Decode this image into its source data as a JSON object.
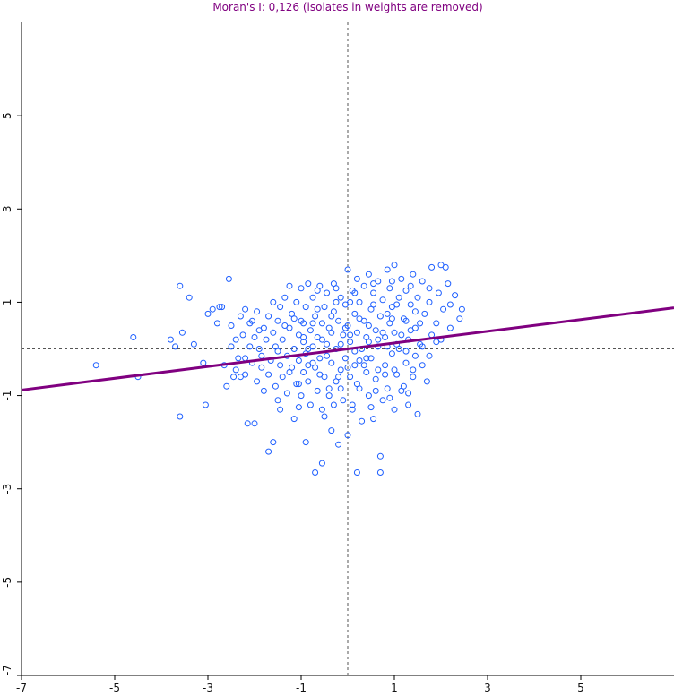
{
  "chart_data": {
    "type": "scatter",
    "title": "Moran's I: 0,126 (isolates in weights are removed)",
    "title_color": "#800080",
    "xlabel": "",
    "ylabel": "",
    "xlim": [
      -7,
      7
    ],
    "ylim": [
      -7,
      7
    ],
    "x_ticks": [
      "-7",
      "-5",
      "-3",
      "-1",
      "1",
      "3",
      "5"
    ],
    "y_ticks": [
      "-7",
      "-5",
      "-3",
      "-1",
      "1",
      "3",
      "5"
    ],
    "point_color": "#1e5fff",
    "line_color": "#800080",
    "regression": {
      "slope": 0.126,
      "intercept": 0.0
    },
    "reference_lines": {
      "x": 0,
      "y": 0
    },
    "grid": false,
    "points": [
      [
        -5.4,
        -0.35
      ],
      [
        -4.6,
        0.25
      ],
      [
        -4.5,
        -0.6
      ],
      [
        -3.8,
        0.2
      ],
      [
        -3.7,
        0.05
      ],
      [
        -3.6,
        1.35
      ],
      [
        -3.6,
        -1.45
      ],
      [
        -3.55,
        0.35
      ],
      [
        -3.4,
        1.1
      ],
      [
        -3.3,
        0.1
      ],
      [
        -3.1,
        -0.3
      ],
      [
        -3.05,
        -1.2
      ],
      [
        -3.0,
        0.75
      ],
      [
        -2.9,
        0.85
      ],
      [
        -2.8,
        0.55
      ],
      [
        -2.75,
        0.9
      ],
      [
        -2.7,
        0.9
      ],
      [
        -2.65,
        -0.35
      ],
      [
        -2.6,
        -0.8
      ],
      [
        -2.55,
        1.5
      ],
      [
        -2.5,
        0.5
      ],
      [
        -2.45,
        -0.6
      ],
      [
        -2.4,
        -0.45
      ],
      [
        -2.4,
        0.2
      ],
      [
        -2.35,
        -0.2
      ],
      [
        -2.3,
        -0.6
      ],
      [
        -2.3,
        0.7
      ],
      [
        -2.25,
        0.3
      ],
      [
        -2.2,
        -0.55
      ],
      [
        -2.2,
        0.85
      ],
      [
        -2.15,
        -1.6
      ],
      [
        -2.1,
        0.05
      ],
      [
        -2.05,
        -0.3
      ],
      [
        -2.05,
        0.6
      ],
      [
        -2.0,
        -1.6
      ],
      [
        -2.0,
        0.25
      ],
      [
        -1.95,
        -0.7
      ],
      [
        -1.95,
        0.8
      ],
      [
        -1.9,
        0.0
      ],
      [
        -1.85,
        -0.4
      ],
      [
        -1.85,
        -0.15
      ],
      [
        -1.8,
        0.45
      ],
      [
        -1.75,
        0.2
      ],
      [
        -1.7,
        -0.55
      ],
      [
        -1.7,
        -2.2
      ],
      [
        -1.7,
        0.7
      ],
      [
        -1.65,
        -0.25
      ],
      [
        -1.6,
        -2.0
      ],
      [
        -1.6,
        1.0
      ],
      [
        -1.6,
        0.35
      ],
      [
        -1.55,
        -0.8
      ],
      [
        -1.55,
        0.05
      ],
      [
        -1.5,
        -1.1
      ],
      [
        -1.5,
        0.6
      ],
      [
        -1.45,
        -0.35
      ],
      [
        -1.45,
        0.9
      ],
      [
        -1.4,
        0.2
      ],
      [
        -1.4,
        -0.6
      ],
      [
        -1.35,
        1.1
      ],
      [
        -1.3,
        -0.15
      ],
      [
        -1.3,
        -0.95
      ],
      [
        -1.25,
        0.45
      ],
      [
        -1.25,
        1.35
      ],
      [
        -1.2,
        -0.4
      ],
      [
        -1.2,
        0.75
      ],
      [
        -1.15,
        0.0
      ],
      [
        -1.15,
        -1.5
      ],
      [
        -1.1,
        1.0
      ],
      [
        -1.1,
        -0.75
      ],
      [
        -1.05,
        0.3
      ],
      [
        -1.05,
        -0.25
      ],
      [
        -1.0,
        1.3
      ],
      [
        -1.0,
        0.6
      ],
      [
        -1.0,
        -1.0
      ],
      [
        -0.95,
        -0.5
      ],
      [
        -0.95,
        0.15
      ],
      [
        -0.9,
        -2.0
      ],
      [
        -0.9,
        0.9
      ],
      [
        -0.9,
        -0.1
      ],
      [
        -0.85,
        1.4
      ],
      [
        -0.85,
        -0.7
      ],
      [
        -0.8,
        0.4
      ],
      [
        -0.8,
        -1.2
      ],
      [
        -0.75,
        0.05
      ],
      [
        -0.75,
        1.1
      ],
      [
        -0.7,
        -0.4
      ],
      [
        -0.7,
        -2.65
      ],
      [
        -0.7,
        0.7
      ],
      [
        -0.65,
        -0.9
      ],
      [
        -0.65,
        0.25
      ],
      [
        -0.6,
        1.35
      ],
      [
        -0.6,
        -0.2
      ],
      [
        -0.55,
        -2.45
      ],
      [
        -0.55,
        0.55
      ],
      [
        -0.55,
        -1.3
      ],
      [
        -0.5,
        0.9
      ],
      [
        -0.5,
        -0.6
      ],
      [
        -0.45,
        0.1
      ],
      [
        -0.45,
        1.2
      ],
      [
        -0.4,
        -1.0
      ],
      [
        -0.4,
        0.45
      ],
      [
        -0.35,
        -0.3
      ],
      [
        -0.35,
        -1.75
      ],
      [
        -0.3,
        0.8
      ],
      [
        -0.3,
        1.4
      ],
      [
        -0.25,
        0.0
      ],
      [
        -0.25,
        -0.7
      ],
      [
        -0.2,
        0.6
      ],
      [
        -0.2,
        -2.05
      ],
      [
        -0.15,
        1.1
      ],
      [
        -0.15,
        -0.45
      ],
      [
        -0.1,
        0.3
      ],
      [
        -0.1,
        -1.1
      ],
      [
        -0.05,
        0.95
      ],
      [
        -0.05,
        -0.2
      ],
      [
        0.0,
        1.7
      ],
      [
        0.0,
        0.5
      ],
      [
        0.0,
        -1.85
      ],
      [
        0.05,
        -0.6
      ],
      [
        0.05,
        0.15
      ],
      [
        0.1,
        1.25
      ],
      [
        0.1,
        -1.3
      ],
      [
        0.15,
        0.75
      ],
      [
        0.15,
        -0.35
      ],
      [
        0.2,
        1.5
      ],
      [
        0.2,
        -2.65
      ],
      [
        0.2,
        0.35
      ],
      [
        0.25,
        -0.85
      ],
      [
        0.25,
        1.0
      ],
      [
        0.3,
        0.0
      ],
      [
        0.3,
        -1.55
      ],
      [
        0.35,
        0.6
      ],
      [
        0.35,
        1.35
      ],
      [
        0.4,
        -0.5
      ],
      [
        0.4,
        0.25
      ],
      [
        0.45,
        1.6
      ],
      [
        0.45,
        -1.0
      ],
      [
        0.5,
        0.85
      ],
      [
        0.5,
        -0.2
      ],
      [
        0.55,
        1.2
      ],
      [
        0.55,
        -1.5
      ],
      [
        0.6,
        0.4
      ],
      [
        0.6,
        -0.65
      ],
      [
        0.65,
        1.45
      ],
      [
        0.65,
        0.05
      ],
      [
        0.7,
        -2.3
      ],
      [
        0.7,
        -2.65
      ],
      [
        0.7,
        0.7
      ],
      [
        0.75,
        -1.1
      ],
      [
        0.75,
        1.05
      ],
      [
        0.8,
        -0.35
      ],
      [
        0.8,
        0.25
      ],
      [
        0.85,
        1.7
      ],
      [
        0.85,
        -0.85
      ],
      [
        0.9,
        0.55
      ],
      [
        0.9,
        1.3
      ],
      [
        0.95,
        -0.1
      ],
      [
        0.95,
        0.9
      ],
      [
        1.0,
        -1.3
      ],
      [
        1.0,
        1.8
      ],
      [
        1.0,
        0.35
      ],
      [
        1.05,
        -0.55
      ],
      [
        1.1,
        1.1
      ],
      [
        1.1,
        0.0
      ],
      [
        1.15,
        1.5
      ],
      [
        1.15,
        -0.9
      ],
      [
        1.2,
        0.65
      ],
      [
        1.25,
        -0.3
      ],
      [
        1.25,
        1.25
      ],
      [
        1.3,
        0.2
      ],
      [
        1.3,
        -1.2
      ],
      [
        1.35,
        0.95
      ],
      [
        1.4,
        1.6
      ],
      [
        1.4,
        -0.6
      ],
      [
        1.45,
        0.45
      ],
      [
        1.5,
        -1.4
      ],
      [
        1.5,
        1.1
      ],
      [
        1.55,
        0.1
      ],
      [
        1.6,
        -0.35
      ],
      [
        1.6,
        1.45
      ],
      [
        1.65,
        0.75
      ],
      [
        1.7,
        -0.7
      ],
      [
        1.75,
        1.0
      ],
      [
        1.8,
        0.3
      ],
      [
        1.8,
        1.75
      ],
      [
        1.9,
        0.55
      ],
      [
        1.95,
        1.2
      ],
      [
        2.0,
        1.8
      ],
      [
        2.05,
        0.85
      ],
      [
        2.1,
        1.75
      ],
      [
        2.15,
        1.4
      ],
      [
        2.2,
        0.95
      ],
      [
        2.3,
        1.15
      ],
      [
        2.4,
        0.65
      ],
      [
        2.45,
        0.85
      ],
      [
        -0.95,
        0.55
      ],
      [
        -0.85,
        0.0
      ],
      [
        -0.75,
        -0.3
      ],
      [
        -0.65,
        0.85
      ],
      [
        -0.45,
        -0.15
      ],
      [
        -0.35,
        0.35
      ],
      [
        -0.25,
        1.0
      ],
      [
        -0.15,
        -0.85
      ],
      [
        -0.05,
        0.45
      ],
      [
        0.05,
        1.0
      ],
      [
        0.15,
        -0.05
      ],
      [
        0.25,
        0.65
      ],
      [
        0.35,
        -0.35
      ],
      [
        0.45,
        0.15
      ],
      [
        0.55,
        0.95
      ],
      [
        0.65,
        -0.45
      ],
      [
        0.75,
        0.35
      ],
      [
        0.85,
        0.05
      ],
      [
        0.95,
        0.65
      ],
      [
        1.05,
        0.95
      ],
      [
        1.15,
        0.3
      ],
      [
        1.25,
        -0.05
      ],
      [
        1.35,
        0.4
      ],
      [
        1.45,
        0.8
      ],
      [
        1.55,
        0.55
      ],
      [
        -1.35,
        0.5
      ],
      [
        -1.15,
        0.65
      ],
      [
        -0.95,
        0.25
      ],
      [
        -0.75,
        0.55
      ],
      [
        -0.55,
        0.2
      ],
      [
        -0.35,
        0.7
      ],
      [
        -0.15,
        0.1
      ],
      [
        0.05,
        0.3
      ],
      [
        0.25,
        -0.25
      ],
      [
        0.45,
        0.5
      ],
      [
        0.65,
        0.2
      ],
      [
        0.85,
        0.75
      ],
      [
        1.05,
        0.1
      ],
      [
        1.25,
        0.6
      ],
      [
        1.45,
        -0.15
      ],
      [
        -1.5,
        -0.05
      ],
      [
        -1.25,
        -0.5
      ],
      [
        -1.05,
        -0.75
      ],
      [
        -0.85,
        -0.35
      ],
      [
        -0.6,
        -0.55
      ],
      [
        -0.4,
        -0.85
      ],
      [
        -0.2,
        -0.6
      ],
      [
        0.0,
        -0.4
      ],
      [
        0.2,
        -0.75
      ],
      [
        0.4,
        -0.2
      ],
      [
        0.6,
        -0.9
      ],
      [
        0.8,
        -0.55
      ],
      [
        1.0,
        -0.45
      ],
      [
        1.2,
        -0.8
      ],
      [
        1.4,
        -0.45
      ],
      [
        1.6,
        0.05
      ],
      [
        1.75,
        -0.15
      ],
      [
        1.9,
        0.15
      ],
      [
        -1.9,
        0.4
      ],
      [
        -2.1,
        0.55
      ],
      [
        -0.65,
        1.25
      ],
      [
        -0.25,
        1.3
      ],
      [
        0.15,
        1.2
      ],
      [
        0.55,
        1.4
      ],
      [
        0.95,
        1.45
      ],
      [
        1.35,
        1.35
      ],
      [
        1.75,
        1.3
      ],
      [
        -1.05,
        -1.25
      ],
      [
        -0.5,
        -1.45
      ],
      [
        0.1,
        -1.2
      ],
      [
        0.5,
        -1.25
      ],
      [
        0.9,
        -1.05
      ],
      [
        1.3,
        -0.95
      ],
      [
        -2.5,
        0.05
      ],
      [
        -2.2,
        -0.2
      ],
      [
        -1.8,
        -0.9
      ],
      [
        -1.45,
        -1.3
      ],
      [
        2.0,
        0.2
      ],
      [
        2.2,
        0.45
      ],
      [
        -0.3,
        -1.2
      ]
    ]
  }
}
